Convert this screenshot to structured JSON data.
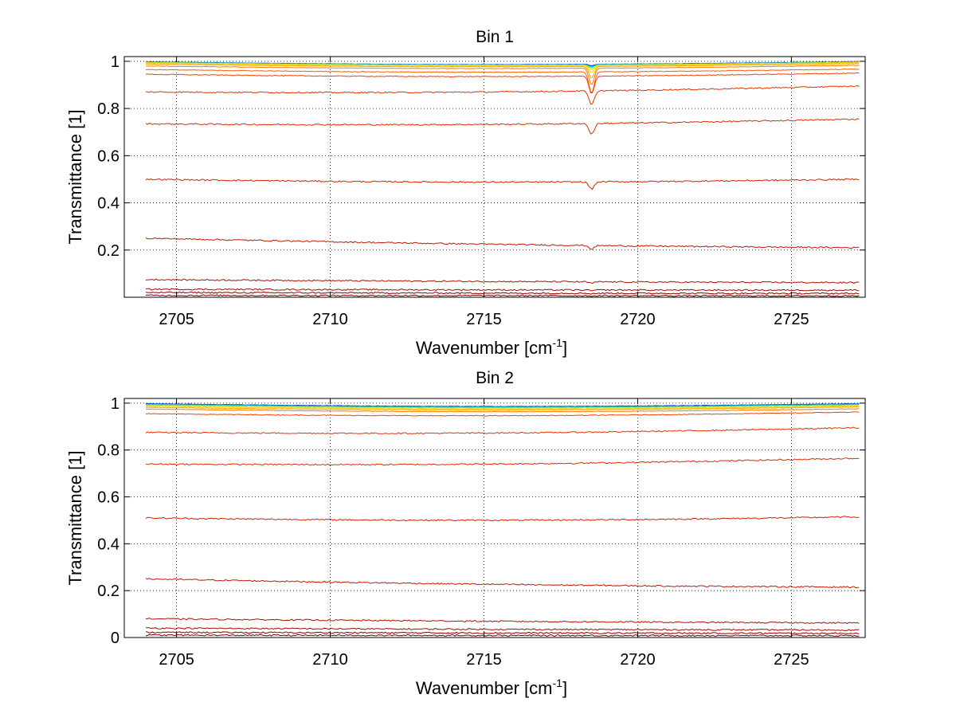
{
  "chart_data": [
    {
      "type": "line",
      "title": "Bin 1",
      "xlabel": "Wavenumber [cm",
      "xlabel_sup": "-1",
      "xlabel_end": "]",
      "ylabel": "Transmittance [1]",
      "xlim": [
        2703.3,
        2727.4
      ],
      "ylim": [
        0,
        1.02
      ],
      "x_range": [
        2704.0,
        2727.2
      ],
      "xticks": [
        2705,
        2710,
        2715,
        2720,
        2725
      ],
      "xtick_labels": [
        "2705",
        "2710",
        "2715",
        "2720",
        "2725"
      ],
      "yticks": [
        0.2,
        0.4,
        0.6,
        0.8,
        1
      ],
      "ytick_labels": [
        "0.2",
        "0.4",
        "0.6",
        "0.8",
        "1"
      ],
      "grid": true,
      "absorption_line": {
        "x": 2718.5,
        "width": 0.12
      },
      "series": [
        {
          "start": 0.998,
          "end": 0.999,
          "dip": 0.005,
          "color": "#0033cc"
        },
        {
          "start": 0.997,
          "end": 0.998,
          "dip": 0.008,
          "color": "#00a0e0"
        },
        {
          "start": 0.996,
          "end": 0.997,
          "dip": 0.012,
          "color": "#40d0a0"
        },
        {
          "start": 0.995,
          "end": 0.996,
          "dip": 0.02,
          "color": "#c8e020"
        },
        {
          "start": 0.992,
          "end": 0.994,
          "dip": 0.03,
          "color": "#ffd000"
        },
        {
          "start": 0.988,
          "end": 0.99,
          "dip": 0.05,
          "color": "#ffa000"
        },
        {
          "start": 0.98,
          "end": 0.983,
          "dip": 0.07,
          "color": "#ff7a00"
        },
        {
          "start": 0.965,
          "end": 0.967,
          "dip": 0.09,
          "color": "#ff5a00"
        },
        {
          "start": 0.945,
          "end": 0.95,
          "dip": 0.075,
          "color": "#f04000"
        },
        {
          "start": 0.87,
          "end": 0.895,
          "dip": 0.06,
          "color": "#e83000"
        },
        {
          "start": 0.735,
          "end": 0.755,
          "dip": 0.045,
          "color": "#dd2a00"
        },
        {
          "start": 0.5,
          "end": 0.5,
          "dip": 0.03,
          "color": "#d22200"
        },
        {
          "start": 0.25,
          "end": 0.21,
          "dip": 0.015,
          "color": "#c01800"
        },
        {
          "start": 0.075,
          "end": 0.062,
          "dip": 0.006,
          "color": "#b01000"
        },
        {
          "start": 0.034,
          "end": 0.03,
          "dip": 0.003,
          "color": "#a00a00"
        },
        {
          "start": 0.02,
          "end": 0.016,
          "dip": 0.002,
          "color": "#8a0000"
        },
        {
          "start": 0.008,
          "end": 0.006,
          "dip": 0.001,
          "color": "#780000"
        }
      ]
    },
    {
      "type": "line",
      "title": "Bin 2",
      "xlabel": "Wavenumber [cm",
      "xlabel_sup": "-1",
      "xlabel_end": "]",
      "ylabel": "Transmittance [1]",
      "xlim": [
        2703.3,
        2727.4
      ],
      "ylim": [
        0,
        1.02
      ],
      "x_range": [
        2704.0,
        2727.2
      ],
      "xticks": [
        2705,
        2710,
        2715,
        2720,
        2725
      ],
      "xtick_labels": [
        "2705",
        "2710",
        "2715",
        "2720",
        "2725"
      ],
      "yticks": [
        0,
        0.2,
        0.4,
        0.6,
        0.8,
        1
      ],
      "ytick_labels": [
        "0",
        "0.2",
        "0.4",
        "0.6",
        "0.8",
        "1"
      ],
      "grid": true,
      "absorption_line": null,
      "series": [
        {
          "start": 0.998,
          "end": 0.998,
          "dip": 0,
          "color": "#0033cc"
        },
        {
          "start": 0.996,
          "end": 0.996,
          "dip": 0,
          "color": "#00a0e0"
        },
        {
          "start": 0.994,
          "end": 0.994,
          "dip": 0,
          "color": "#40d0a0"
        },
        {
          "start": 0.991,
          "end": 0.991,
          "dip": 0,
          "color": "#c8e020"
        },
        {
          "start": 0.987,
          "end": 0.987,
          "dip": 0,
          "color": "#ffd000"
        },
        {
          "start": 0.982,
          "end": 0.984,
          "dip": 0,
          "color": "#ffa000"
        },
        {
          "start": 0.975,
          "end": 0.976,
          "dip": 0,
          "color": "#ff7a00"
        },
        {
          "start": 0.955,
          "end": 0.962,
          "dip": 0,
          "color": "#f04000"
        },
        {
          "start": 0.875,
          "end": 0.895,
          "dip": 0,
          "color": "#e83000"
        },
        {
          "start": 0.74,
          "end": 0.765,
          "dip": 0,
          "color": "#dd2a00"
        },
        {
          "start": 0.51,
          "end": 0.515,
          "dip": 0,
          "color": "#d22200"
        },
        {
          "start": 0.25,
          "end": 0.215,
          "dip": 0,
          "color": "#c01800"
        },
        {
          "start": 0.08,
          "end": 0.062,
          "dip": 0,
          "color": "#b01000"
        },
        {
          "start": 0.04,
          "end": 0.032,
          "dip": 0,
          "color": "#a00a00"
        },
        {
          "start": 0.022,
          "end": 0.018,
          "dip": 0,
          "color": "#8a0000"
        },
        {
          "start": 0.01,
          "end": 0.008,
          "dip": 0,
          "color": "#780000"
        }
      ]
    }
  ]
}
